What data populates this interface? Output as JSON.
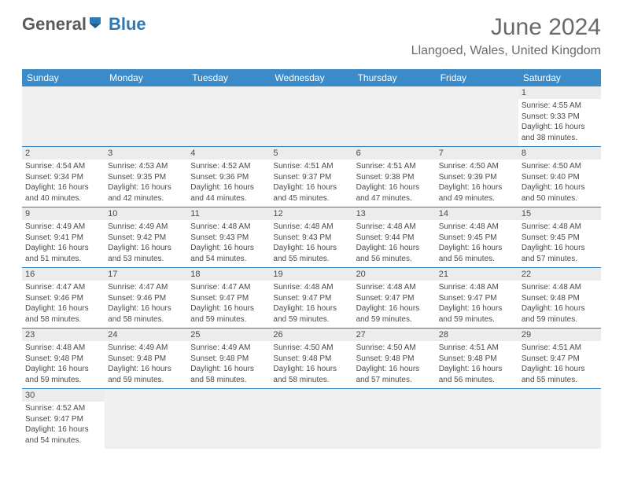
{
  "logo": {
    "text1": "General",
    "text2": "Blue"
  },
  "title": "June 2024",
  "location": "Llangoed, Wales, United Kingdom",
  "colors": {
    "header_bg": "#3b8bc9",
    "accent": "#2a7aba",
    "gray_row": "#ececec",
    "empty_bg": "#f0f0f0",
    "text": "#4a4a4a"
  },
  "day_headers": [
    "Sunday",
    "Monday",
    "Tuesday",
    "Wednesday",
    "Thursday",
    "Friday",
    "Saturday"
  ],
  "weeks": [
    [
      null,
      null,
      null,
      null,
      null,
      null,
      {
        "n": "1",
        "sr": "Sunrise: 4:55 AM",
        "ss": "Sunset: 9:33 PM",
        "d1": "Daylight: 16 hours",
        "d2": "and 38 minutes."
      }
    ],
    [
      {
        "n": "2",
        "sr": "Sunrise: 4:54 AM",
        "ss": "Sunset: 9:34 PM",
        "d1": "Daylight: 16 hours",
        "d2": "and 40 minutes."
      },
      {
        "n": "3",
        "sr": "Sunrise: 4:53 AM",
        "ss": "Sunset: 9:35 PM",
        "d1": "Daylight: 16 hours",
        "d2": "and 42 minutes."
      },
      {
        "n": "4",
        "sr": "Sunrise: 4:52 AM",
        "ss": "Sunset: 9:36 PM",
        "d1": "Daylight: 16 hours",
        "d2": "and 44 minutes."
      },
      {
        "n": "5",
        "sr": "Sunrise: 4:51 AM",
        "ss": "Sunset: 9:37 PM",
        "d1": "Daylight: 16 hours",
        "d2": "and 45 minutes."
      },
      {
        "n": "6",
        "sr": "Sunrise: 4:51 AM",
        "ss": "Sunset: 9:38 PM",
        "d1": "Daylight: 16 hours",
        "d2": "and 47 minutes."
      },
      {
        "n": "7",
        "sr": "Sunrise: 4:50 AM",
        "ss": "Sunset: 9:39 PM",
        "d1": "Daylight: 16 hours",
        "d2": "and 49 minutes."
      },
      {
        "n": "8",
        "sr": "Sunrise: 4:50 AM",
        "ss": "Sunset: 9:40 PM",
        "d1": "Daylight: 16 hours",
        "d2": "and 50 minutes."
      }
    ],
    [
      {
        "n": "9",
        "sr": "Sunrise: 4:49 AM",
        "ss": "Sunset: 9:41 PM",
        "d1": "Daylight: 16 hours",
        "d2": "and 51 minutes."
      },
      {
        "n": "10",
        "sr": "Sunrise: 4:49 AM",
        "ss": "Sunset: 9:42 PM",
        "d1": "Daylight: 16 hours",
        "d2": "and 53 minutes."
      },
      {
        "n": "11",
        "sr": "Sunrise: 4:48 AM",
        "ss": "Sunset: 9:43 PM",
        "d1": "Daylight: 16 hours",
        "d2": "and 54 minutes."
      },
      {
        "n": "12",
        "sr": "Sunrise: 4:48 AM",
        "ss": "Sunset: 9:43 PM",
        "d1": "Daylight: 16 hours",
        "d2": "and 55 minutes."
      },
      {
        "n": "13",
        "sr": "Sunrise: 4:48 AM",
        "ss": "Sunset: 9:44 PM",
        "d1": "Daylight: 16 hours",
        "d2": "and 56 minutes."
      },
      {
        "n": "14",
        "sr": "Sunrise: 4:48 AM",
        "ss": "Sunset: 9:45 PM",
        "d1": "Daylight: 16 hours",
        "d2": "and 56 minutes."
      },
      {
        "n": "15",
        "sr": "Sunrise: 4:48 AM",
        "ss": "Sunset: 9:45 PM",
        "d1": "Daylight: 16 hours",
        "d2": "and 57 minutes."
      }
    ],
    [
      {
        "n": "16",
        "sr": "Sunrise: 4:47 AM",
        "ss": "Sunset: 9:46 PM",
        "d1": "Daylight: 16 hours",
        "d2": "and 58 minutes."
      },
      {
        "n": "17",
        "sr": "Sunrise: 4:47 AM",
        "ss": "Sunset: 9:46 PM",
        "d1": "Daylight: 16 hours",
        "d2": "and 58 minutes."
      },
      {
        "n": "18",
        "sr": "Sunrise: 4:47 AM",
        "ss": "Sunset: 9:47 PM",
        "d1": "Daylight: 16 hours",
        "d2": "and 59 minutes."
      },
      {
        "n": "19",
        "sr": "Sunrise: 4:48 AM",
        "ss": "Sunset: 9:47 PM",
        "d1": "Daylight: 16 hours",
        "d2": "and 59 minutes."
      },
      {
        "n": "20",
        "sr": "Sunrise: 4:48 AM",
        "ss": "Sunset: 9:47 PM",
        "d1": "Daylight: 16 hours",
        "d2": "and 59 minutes."
      },
      {
        "n": "21",
        "sr": "Sunrise: 4:48 AM",
        "ss": "Sunset: 9:47 PM",
        "d1": "Daylight: 16 hours",
        "d2": "and 59 minutes."
      },
      {
        "n": "22",
        "sr": "Sunrise: 4:48 AM",
        "ss": "Sunset: 9:48 PM",
        "d1": "Daylight: 16 hours",
        "d2": "and 59 minutes."
      }
    ],
    [
      {
        "n": "23",
        "sr": "Sunrise: 4:48 AM",
        "ss": "Sunset: 9:48 PM",
        "d1": "Daylight: 16 hours",
        "d2": "and 59 minutes."
      },
      {
        "n": "24",
        "sr": "Sunrise: 4:49 AM",
        "ss": "Sunset: 9:48 PM",
        "d1": "Daylight: 16 hours",
        "d2": "and 59 minutes."
      },
      {
        "n": "25",
        "sr": "Sunrise: 4:49 AM",
        "ss": "Sunset: 9:48 PM",
        "d1": "Daylight: 16 hours",
        "d2": "and 58 minutes."
      },
      {
        "n": "26",
        "sr": "Sunrise: 4:50 AM",
        "ss": "Sunset: 9:48 PM",
        "d1": "Daylight: 16 hours",
        "d2": "and 58 minutes."
      },
      {
        "n": "27",
        "sr": "Sunrise: 4:50 AM",
        "ss": "Sunset: 9:48 PM",
        "d1": "Daylight: 16 hours",
        "d2": "and 57 minutes."
      },
      {
        "n": "28",
        "sr": "Sunrise: 4:51 AM",
        "ss": "Sunset: 9:48 PM",
        "d1": "Daylight: 16 hours",
        "d2": "and 56 minutes."
      },
      {
        "n": "29",
        "sr": "Sunrise: 4:51 AM",
        "ss": "Sunset: 9:47 PM",
        "d1": "Daylight: 16 hours",
        "d2": "and 55 minutes."
      }
    ],
    [
      {
        "n": "30",
        "sr": "Sunrise: 4:52 AM",
        "ss": "Sunset: 9:47 PM",
        "d1": "Daylight: 16 hours",
        "d2": "and 54 minutes."
      },
      null,
      null,
      null,
      null,
      null,
      null
    ]
  ]
}
